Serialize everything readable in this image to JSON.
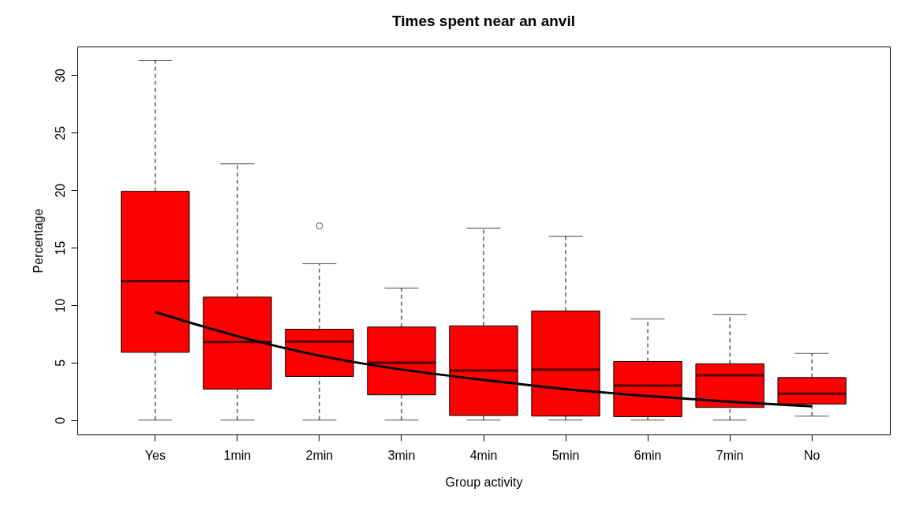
{
  "chart_data": {
    "type": "box",
    "title": "Times spent near an anvil",
    "xlabel": "Group activity",
    "ylabel": "Percentage",
    "categories": [
      "Yes",
      "1min",
      "2min",
      "3min",
      "4min",
      "5min",
      "6min",
      "7min",
      "No"
    ],
    "ylim": [
      -1.25,
      32.5
    ],
    "yticks": [
      0,
      5,
      10,
      15,
      20,
      25,
      30
    ],
    "grid": false,
    "series": [
      {
        "color": "#ff0000",
        "boxes": [
          {
            "low": 0,
            "q1": 5.9,
            "median": 12.1,
            "q3": 19.9,
            "high": 31.3
          },
          {
            "low": 0,
            "q1": 2.7,
            "median": 6.8,
            "q3": 10.7,
            "high": 22.3
          },
          {
            "low": 0,
            "q1": 3.8,
            "median": 6.85,
            "q3": 7.9,
            "high": 13.6,
            "outliers": [
              16.9
            ]
          },
          {
            "low": 0,
            "q1": 2.2,
            "median": 5.0,
            "q3": 8.1,
            "high": 11.5
          },
          {
            "low": 0,
            "q1": 0.4,
            "median": 4.3,
            "q3": 8.2,
            "high": 16.7
          },
          {
            "low": 0,
            "q1": 0.35,
            "median": 4.4,
            "q3": 9.5,
            "high": 16.0
          },
          {
            "low": 0,
            "q1": 0.3,
            "median": 3.0,
            "q3": 5.1,
            "high": 8.8
          },
          {
            "low": 0,
            "q1": 1.1,
            "median": 3.9,
            "q3": 4.9,
            "high": 9.2
          },
          {
            "low": 0.35,
            "q1": 1.4,
            "median": 2.3,
            "q3": 3.7,
            "high": 5.8
          }
        ]
      },
      {
        "type": "line",
        "color": "#000000",
        "x": [
          "Yes",
          "1min",
          "2min",
          "3min",
          "4min",
          "5min",
          "6min",
          "7min",
          "No"
        ],
        "values": [
          9.4,
          7.3,
          5.6,
          4.4,
          3.5,
          2.7,
          2.1,
          1.6,
          1.2
        ]
      }
    ]
  }
}
